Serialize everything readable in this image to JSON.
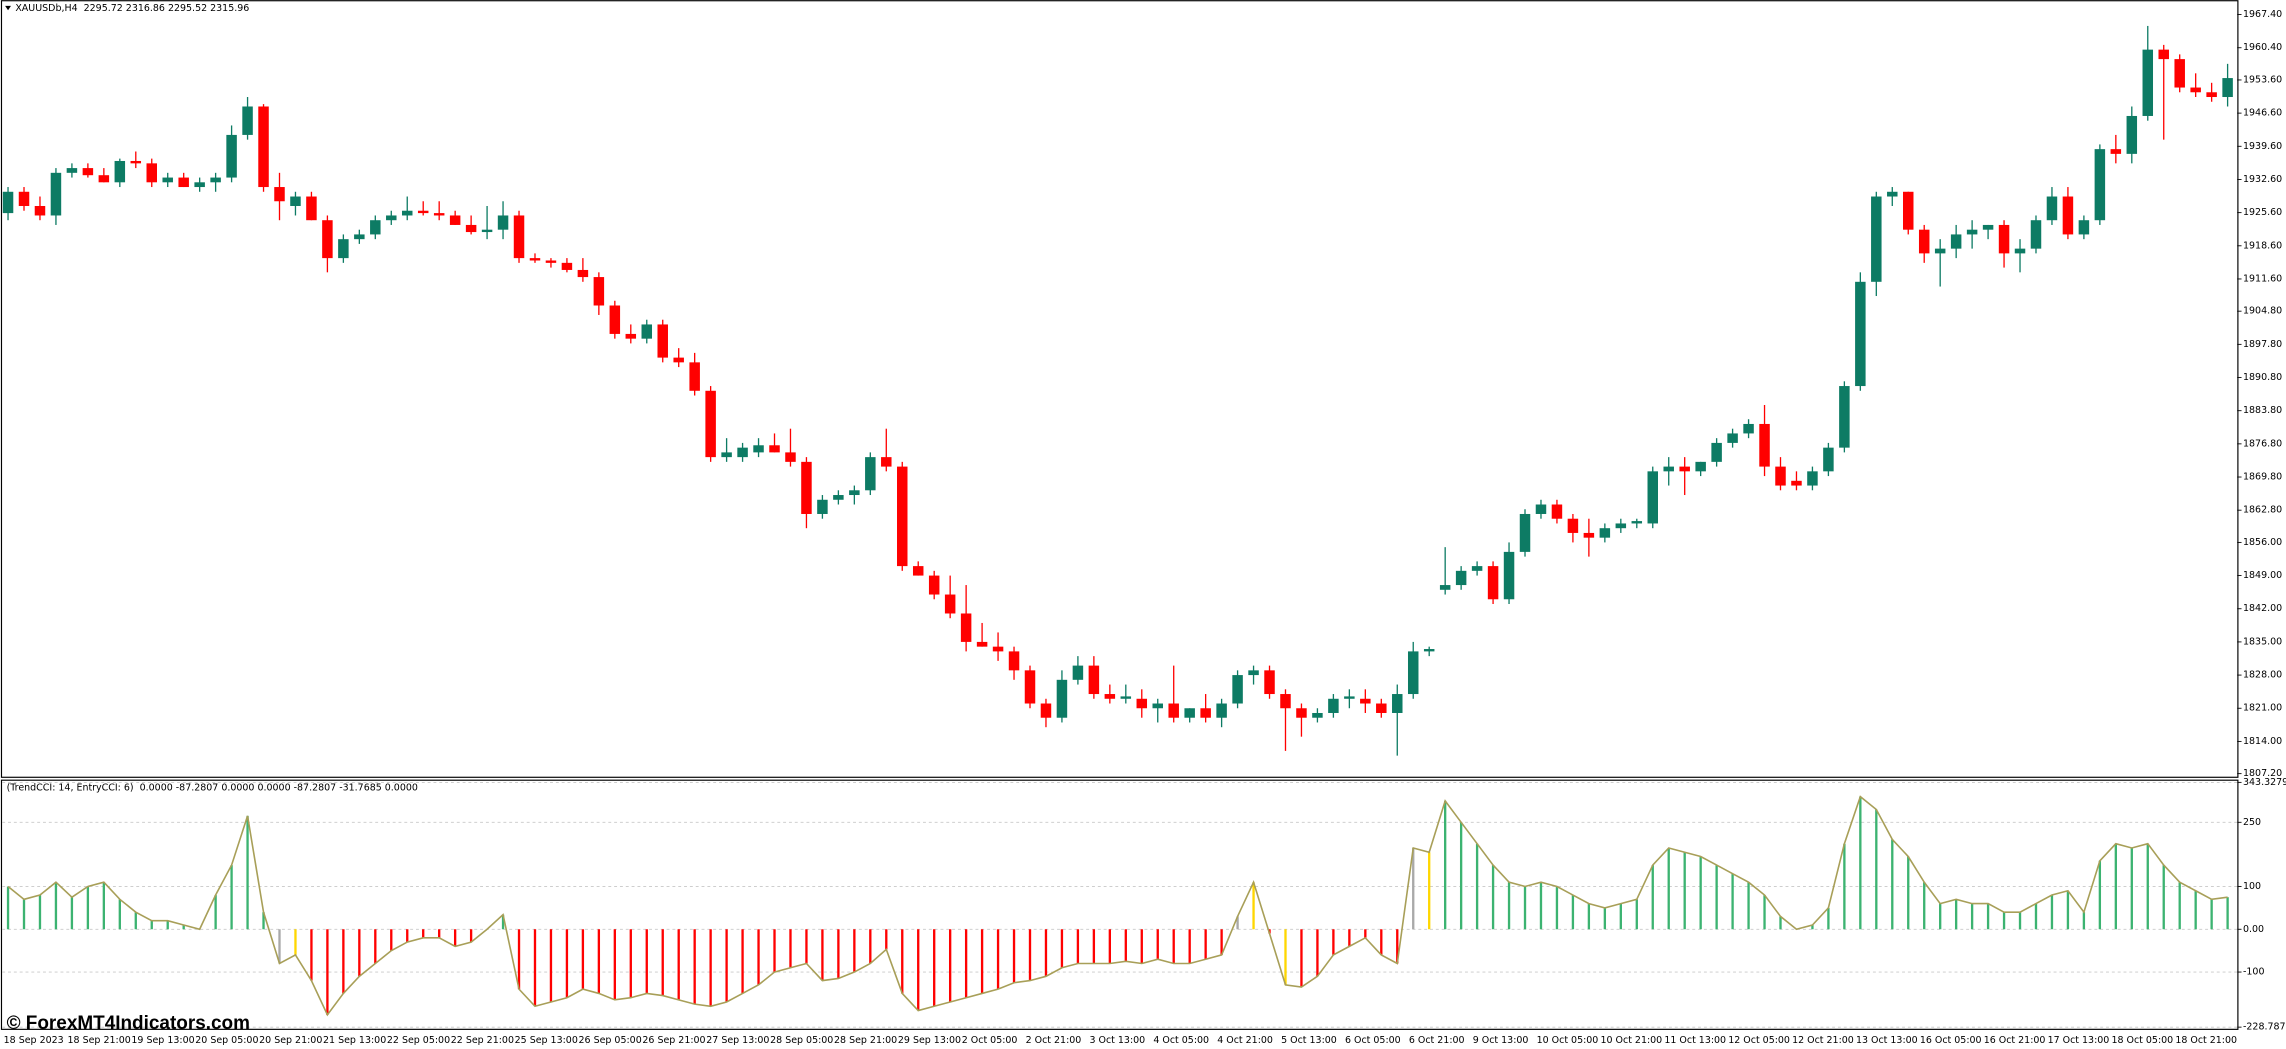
{
  "watermark": "© ForexMT4Indicators.com",
  "chart_data": [
    {
      "type": "candlestick",
      "title": "XAUUSDb,H4  2295.72 2316.86 2295.52 2315.96",
      "up_color": "#0d7b64",
      "down_color": "#ff0000",
      "ylim": [
        1807.2,
        1967.4
      ],
      "yticks": [
        {
          "value": 1967.4,
          "label": "1967.40"
        },
        {
          "value": 1960.4,
          "label": "1960.40"
        },
        {
          "value": 1953.6,
          "label": "1953.60"
        },
        {
          "value": 1946.6,
          "label": "1946.60"
        },
        {
          "value": 1939.6,
          "label": "1939.60"
        },
        {
          "value": 1932.6,
          "label": "1932.60"
        },
        {
          "value": 1925.6,
          "label": "1925.60"
        },
        {
          "value": 1918.6,
          "label": "1918.60"
        },
        {
          "value": 1911.6,
          "label": "1911.60"
        },
        {
          "value": 1904.8,
          "label": "1904.80"
        },
        {
          "value": 1897.8,
          "label": "1897.80"
        },
        {
          "value": 1890.8,
          "label": "1890.80"
        },
        {
          "value": 1883.8,
          "label": "1883.80"
        },
        {
          "value": 1876.8,
          "label": "1876.80"
        },
        {
          "value": 1869.8,
          "label": "1869.80"
        },
        {
          "value": 1862.8,
          "label": "1862.80"
        },
        {
          "value": 1856,
          "label": "1856.00"
        },
        {
          "value": 1849,
          "label": "1849.00"
        },
        {
          "value": 1842,
          "label": "1842.00"
        },
        {
          "value": 1835,
          "label": "1835.00"
        },
        {
          "value": 1828,
          "label": "1828.00"
        },
        {
          "value": 1821,
          "label": "1821.00"
        },
        {
          "value": 1814,
          "label": "1814.00"
        },
        {
          "value": 1807.2,
          "label": "1807.20"
        }
      ],
      "open": [
        1925.5,
        1930,
        1927,
        1925,
        1934,
        1935,
        1933.5,
        1932,
        1936.5,
        1936,
        1932,
        1933,
        1931,
        1932,
        1933,
        1942,
        1948,
        1931,
        1927,
        1929,
        1924,
        1916,
        1920,
        1921,
        1924,
        1925,
        1926,
        1925.5,
        1925,
        1923,
        1921.5,
        1922,
        1925,
        1916,
        1915.5,
        1915,
        1913.5,
        1912,
        1906,
        1900,
        1899,
        1902,
        1895,
        1894,
        1888,
        1874,
        1874,
        1875,
        1876.5,
        1875,
        1873,
        1862,
        1865,
        1866,
        1867,
        1874,
        1872,
        1851,
        1849,
        1845,
        1841,
        1835,
        1834,
        1833,
        1829,
        1822,
        1819,
        1827,
        1830,
        1824,
        1823,
        1823,
        1821,
        1822,
        1819,
        1821,
        1819,
        1822,
        1828,
        1829,
        1824,
        1821,
        1819,
        1820,
        1823,
        1823,
        1822,
        1820,
        1824,
        1833,
        1846,
        1847,
        1850,
        1851,
        1844,
        1854,
        1862,
        1864,
        1861,
        1858,
        1857,
        1859,
        1860,
        1860,
        1871,
        1872,
        1871,
        1873,
        1877,
        1879,
        1881,
        1872,
        1869,
        1868,
        1871,
        1876,
        1889,
        1911,
        1929,
        1930,
        1922,
        1917,
        1918,
        1921,
        1922,
        1923,
        1917,
        1918,
        1924,
        1929,
        1921,
        1924,
        1939,
        1938,
        1946,
        1960,
        1958,
        1952,
        1951,
        1950
      ],
      "high": [
        1931,
        1931,
        1929,
        1935,
        1936,
        1936,
        1935,
        1937,
        1938.5,
        1937,
        1934,
        1934,
        1933,
        1934,
        1944,
        1950,
        1948.5,
        1934,
        1930,
        1930,
        1925,
        1921,
        1922,
        1925,
        1926,
        1929,
        1928,
        1928,
        1926,
        1925,
        1927,
        1928,
        1926,
        1917,
        1916,
        1916,
        1916,
        1913,
        1907,
        1902,
        1903,
        1903,
        1897,
        1896,
        1889,
        1878,
        1877,
        1878,
        1879,
        1880,
        1874,
        1866,
        1867,
        1868,
        1875,
        1880,
        1873,
        1852,
        1850,
        1849,
        1847,
        1839,
        1837,
        1834,
        1830,
        1823,
        1829,
        1832,
        1832,
        1826,
        1826,
        1825,
        1823,
        1830,
        1821,
        1824,
        1823,
        1829,
        1830,
        1830,
        1825,
        1822,
        1821,
        1824,
        1825,
        1825,
        1823,
        1826,
        1835,
        1834,
        1855,
        1851,
        1852,
        1852,
        1856,
        1863,
        1865,
        1865,
        1862,
        1861,
        1860,
        1861,
        1861,
        1872,
        1874,
        1874,
        1873,
        1878,
        1880,
        1882,
        1885,
        1874,
        1871,
        1872,
        1877,
        1890,
        1913,
        1930,
        1931,
        1930,
        1923,
        1920,
        1923,
        1924,
        1923,
        1924,
        1920,
        1925,
        1931,
        1931,
        1925,
        1940,
        1942,
        1948,
        1965,
        1961,
        1959,
        1955,
        1953,
        1957
      ],
      "low": [
        1924,
        1926,
        1924,
        1923,
        1933,
        1933,
        1932,
        1931,
        1935,
        1931,
        1931,
        1931,
        1930,
        1930,
        1932,
        1941,
        1930,
        1924,
        1925,
        1924,
        1913,
        1915,
        1919,
        1920,
        1923,
        1924,
        1925,
        1924,
        1923,
        1921,
        1920,
        1920,
        1915,
        1915,
        1914,
        1913,
        1911,
        1904,
        1899,
        1898,
        1898,
        1894,
        1893,
        1887,
        1873,
        1873,
        1873,
        1874,
        1875,
        1872,
        1859,
        1861,
        1864,
        1864,
        1866,
        1871,
        1850,
        1849,
        1844,
        1840,
        1833,
        1834,
        1831,
        1827,
        1821,
        1817,
        1818,
        1826,
        1823,
        1822,
        1822,
        1819,
        1818,
        1818,
        1818,
        1818,
        1817,
        1821,
        1826,
        1823,
        1812,
        1815,
        1818,
        1819,
        1821,
        1820,
        1819,
        1811,
        1823,
        1832,
        1845,
        1846,
        1849,
        1843,
        1843,
        1853,
        1861,
        1860,
        1856,
        1853,
        1856,
        1858,
        1859,
        1859,
        1868,
        1866,
        1870,
        1872,
        1876,
        1878,
        1870,
        1867,
        1867,
        1867,
        1870,
        1875,
        1888,
        1908,
        1927,
        1921,
        1915,
        1910,
        1916,
        1918,
        1920,
        1914,
        1913,
        1917,
        1923,
        1920,
        1920,
        1923,
        1936,
        1936,
        1945,
        1941,
        1951,
        1950,
        1949,
        1948
      ],
      "close": [
        1930,
        1927,
        1925,
        1934,
        1935,
        1933.5,
        1932,
        1936.5,
        1936,
        1932,
        1933,
        1931,
        1932,
        1933,
        1942,
        1948,
        1931,
        1928,
        1929,
        1924,
        1916,
        1920,
        1921,
        1924,
        1925,
        1926,
        1925.5,
        1925,
        1923,
        1921.5,
        1922,
        1925,
        1916,
        1915.5,
        1915,
        1913.5,
        1912,
        1906,
        1900,
        1899,
        1902,
        1895,
        1894,
        1888,
        1874,
        1875,
        1876,
        1876.5,
        1875,
        1873,
        1862,
        1865,
        1866,
        1867,
        1874,
        1872,
        1851,
        1849,
        1845,
        1841,
        1835,
        1834,
        1833,
        1829,
        1822,
        1819,
        1827,
        1830,
        1824,
        1823,
        1823.5,
        1821,
        1822,
        1819,
        1821,
        1819,
        1822,
        1828,
        1829,
        1824,
        1821,
        1819,
        1820,
        1823,
        1823.5,
        1822,
        1820,
        1824,
        1833,
        1833.5,
        1847,
        1850,
        1851,
        1844,
        1854,
        1862,
        1864,
        1861,
        1858,
        1857,
        1859,
        1860,
        1860.5,
        1871,
        1872,
        1871,
        1873,
        1877,
        1879,
        1881,
        1872,
        1868,
        1868,
        1871,
        1876,
        1889,
        1911,
        1929,
        1930,
        1922,
        1917,
        1918,
        1921,
        1922,
        1923,
        1917,
        1918,
        1924,
        1929,
        1921,
        1924,
        1939,
        1938,
        1946,
        1960,
        1958,
        1952,
        1951,
        1950,
        1954
      ]
    },
    {
      "type": "histogram-line",
      "title": "(TrendCCI: 14, EntryCCI: 6)  0.0000 -87.2807 0.0000 0.0000 -87.2807 -31.7685 0.0000",
      "line_color": "#a89f58",
      "grid": true,
      "ylim": [
        -228.7873,
        343.3279
      ],
      "yticks": [
        343.3279,
        250,
        100,
        {
          "value": 0,
          "label": "0.00"
        },
        -100,
        -228.7873
      ],
      "categories": [
        "18 Sep 2023",
        null,
        null,
        null,
        "18 Sep 21:00",
        null,
        null,
        null,
        "19 Sep 13:00",
        null,
        null,
        null,
        "20 Sep 05:00",
        null,
        null,
        null,
        "20 Sep 21:00",
        null,
        null,
        null,
        "21 Sep 13:00",
        null,
        null,
        null,
        "22 Sep 05:00",
        null,
        null,
        null,
        "22 Sep 21:00",
        null,
        null,
        null,
        "25 Sep 13:00",
        null,
        null,
        null,
        "26 Sep 05:00",
        null,
        null,
        null,
        "26 Sep 21:00",
        null,
        null,
        null,
        "27 Sep 13:00",
        null,
        null,
        null,
        "28 Sep 05:00",
        null,
        null,
        null,
        "28 Sep 21:00",
        null,
        null,
        null,
        "29 Sep 13:00",
        null,
        null,
        null,
        "2 Oct 05:00",
        null,
        null,
        null,
        "2 Oct 21:00",
        null,
        null,
        null,
        "3 Oct 13:00",
        null,
        null,
        null,
        "4 Oct 05:00",
        null,
        null,
        null,
        "4 Oct 21:00",
        null,
        null,
        null,
        "5 Oct 13:00",
        null,
        null,
        null,
        "6 Oct 05:00",
        null,
        null,
        null,
        "6 Oct 21:00",
        null,
        null,
        null,
        "9 Oct 13:00",
        null,
        null,
        null,
        "10 Oct 05:00",
        null,
        null,
        null,
        "10 Oct 21:00",
        null,
        null,
        null,
        "11 Oct 13:00",
        null,
        null,
        null,
        "12 Oct 05:00",
        null,
        null,
        null,
        "12 Oct 21:00",
        null,
        null,
        null,
        "13 Oct 13:00",
        null,
        null,
        null,
        "16 Oct 05:00",
        null,
        null,
        null,
        "16 Oct 21:00",
        null,
        null,
        null,
        "17 Oct 13:00",
        null,
        null,
        null,
        "18 Oct 05:00",
        null,
        null,
        null,
        "18 Oct 21:00",
        null,
        null,
        null
      ],
      "values": [
        100,
        70,
        80,
        110,
        75,
        100,
        110,
        70,
        40,
        20,
        20,
        10,
        0,
        80,
        150,
        265,
        40,
        -80,
        -60,
        -120,
        -200,
        -150,
        -110,
        -80,
        -50,
        -30,
        -20,
        -20,
        -40,
        -30,
        0,
        34,
        -140,
        -180,
        -170,
        -160,
        -140,
        -150,
        -165,
        -160,
        -150,
        -155,
        -165,
        -175,
        -180,
        -170,
        -150,
        -130,
        -100,
        -90,
        -80,
        -120,
        -115,
        -100,
        -80,
        -47,
        -150,
        -190,
        -180,
        -170,
        -160,
        -150,
        -140,
        -125,
        -120,
        -110,
        -90,
        -80,
        -80,
        -80,
        -75,
        -80,
        -70,
        -80,
        -80,
        -70,
        -60,
        30,
        110,
        -10,
        -130,
        -135,
        -110,
        -60,
        -40,
        -20,
        -60,
        -80,
        190,
        180,
        300,
        250,
        200,
        150,
        110,
        100,
        110,
        100,
        80,
        60,
        50,
        60,
        70,
        150,
        190,
        180,
        170,
        150,
        130,
        110,
        80,
        30,
        0,
        10,
        50,
        200,
        310,
        280,
        210,
        170,
        110,
        60,
        70,
        60,
        60,
        40,
        40,
        60,
        80,
        90,
        40,
        160,
        200,
        190,
        200,
        150,
        110,
        90,
        70,
        75
      ],
      "colors": [
        "#3cb371",
        "#3cb371",
        "#3cb371",
        "#3cb371",
        "#3cb371",
        "#3cb371",
        "#3cb371",
        "#3cb371",
        "#3cb371",
        "#3cb371",
        "#3cb371",
        "#3cb371",
        "#3cb371",
        "#3cb371",
        "#3cb371",
        "#3cb371",
        "#3cb371",
        "#a9a9a9",
        "#ffd700",
        "#ff0000",
        "#ff0000",
        "#ff0000",
        "#ff0000",
        "#ff0000",
        "#ff0000",
        "#ff0000",
        "#ff0000",
        "#ff0000",
        "#ff0000",
        "#ff0000",
        "#3cb371",
        "#3cb371",
        "#ff0000",
        "#ff0000",
        "#ff0000",
        "#ff0000",
        "#ff0000",
        "#ff0000",
        "#ff0000",
        "#ff0000",
        "#ff0000",
        "#ff0000",
        "#ff0000",
        "#ff0000",
        "#ff0000",
        "#ff0000",
        "#ff0000",
        "#ff0000",
        "#ff0000",
        "#ff0000",
        "#ff0000",
        "#ff0000",
        "#ff0000",
        "#ff0000",
        "#ff0000",
        "#ff0000",
        "#ff0000",
        "#ff0000",
        "#ff0000",
        "#ff0000",
        "#ff0000",
        "#ff0000",
        "#ff0000",
        "#ff0000",
        "#ff0000",
        "#ff0000",
        "#ff0000",
        "#ff0000",
        "#ff0000",
        "#ff0000",
        "#ff0000",
        "#ff0000",
        "#ff0000",
        "#ff0000",
        "#ff0000",
        "#ff0000",
        "#ff0000",
        "#a9a9a9",
        "#ffd700",
        "#ff0000",
        "#ffd700",
        "#ff0000",
        "#ff0000",
        "#ff0000",
        "#ff0000",
        "#ff0000",
        "#ff0000",
        "#ff0000",
        "#a9a9a9",
        "#ffd700",
        "#3cb371",
        "#3cb371",
        "#3cb371",
        "#3cb371",
        "#3cb371",
        "#3cb371",
        "#3cb371",
        "#3cb371",
        "#3cb371",
        "#3cb371",
        "#3cb371",
        "#3cb371",
        "#3cb371",
        "#3cb371",
        "#3cb371",
        "#3cb371",
        "#3cb371",
        "#3cb371",
        "#3cb371",
        "#3cb371",
        "#3cb371",
        "#3cb371",
        "#3cb371",
        "#3cb371",
        "#3cb371",
        "#3cb371",
        "#3cb371",
        "#3cb371",
        "#3cb371",
        "#3cb371",
        "#3cb371",
        "#3cb371",
        "#3cb371",
        "#3cb371",
        "#3cb371",
        "#3cb371",
        "#3cb371",
        "#3cb371",
        "#3cb371",
        "#3cb371",
        "#3cb371",
        "#3cb371",
        "#3cb371",
        "#3cb371",
        "#3cb371",
        "#3cb371",
        "#3cb371",
        "#3cb371",
        "#3cb371",
        "#3cb371"
      ]
    }
  ]
}
